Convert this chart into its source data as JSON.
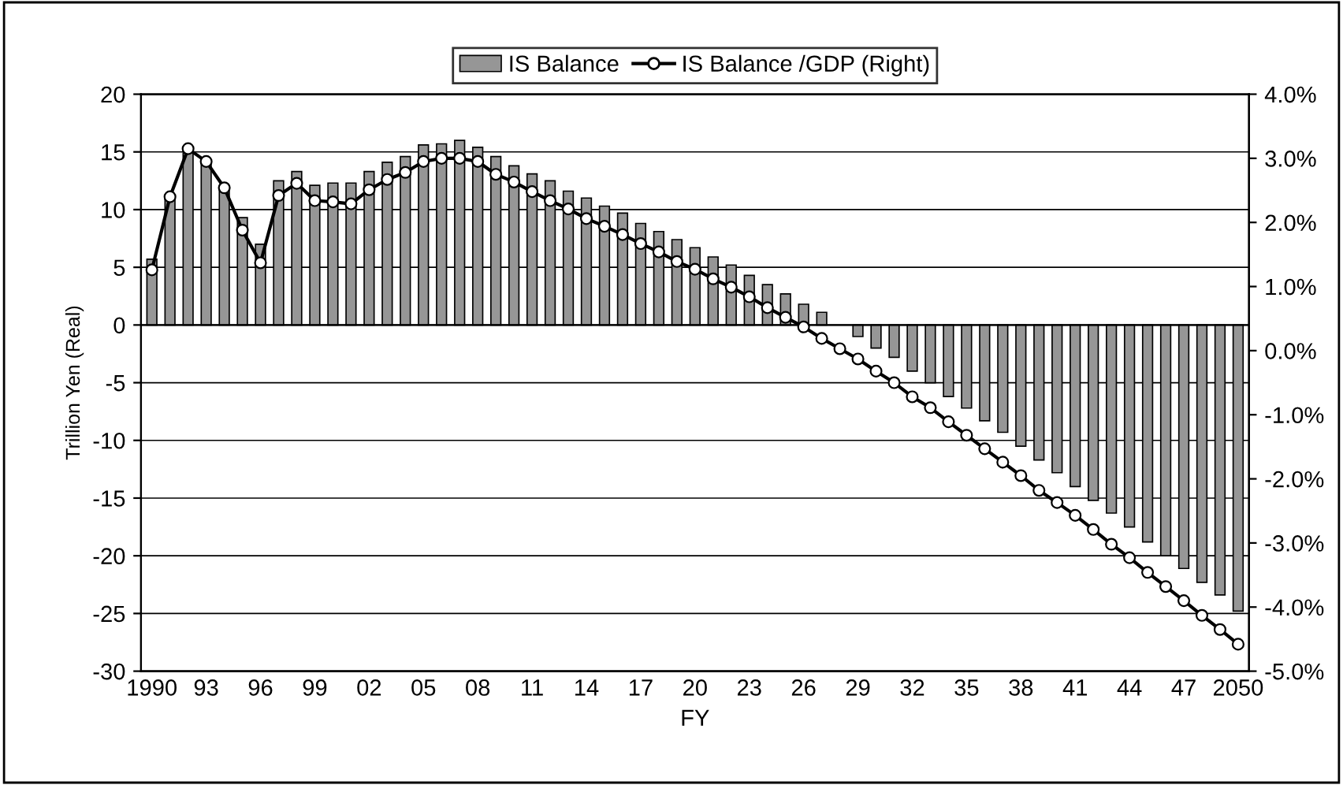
{
  "chart_data": {
    "type": "bar",
    "xlabel": "FY",
    "ylabel": "Trillion Yen (Real)",
    "categories": [
      "1990",
      null,
      null,
      "93",
      null,
      null,
      "96",
      null,
      null,
      "99",
      null,
      null,
      "02",
      null,
      null,
      "05",
      null,
      null,
      "08",
      null,
      null,
      "11",
      null,
      null,
      "14",
      null,
      null,
      "17",
      null,
      null,
      "20",
      null,
      null,
      "23",
      null,
      null,
      "26",
      null,
      null,
      "29",
      null,
      null,
      "32",
      null,
      null,
      "35",
      null,
      null,
      "38",
      null,
      null,
      "41",
      null,
      null,
      "44",
      null,
      null,
      "47",
      null,
      null,
      "2050"
    ],
    "series": [
      {
        "name": "IS Balance",
        "color": "#969696",
        "values": [
          5.7,
          11,
          14.9,
          14.3,
          11.9,
          9.3,
          7.0,
          12.5,
          13.3,
          12.1,
          12.3,
          12.3,
          13.3,
          14.1,
          14.6,
          15.6,
          15.7,
          16.0,
          15.4,
          14.6,
          13.8,
          13.1,
          12.5,
          11.6,
          11.0,
          10.3,
          9.7,
          8.8,
          8.1,
          7.4,
          6.7,
          5.9,
          5.2,
          4.3,
          3.5,
          2.7,
          1.8,
          1.1,
          null,
          -1.0,
          -2.0,
          -2.8,
          -4.0,
          -5.0,
          -6.2,
          -7.2,
          -8.3,
          -9.3,
          -10.5,
          -11.7,
          -12.8,
          -14.0,
          -15.2,
          -16.3,
          -17.5,
          -18.8,
          -20.0,
          -21.1,
          -22.3,
          -23.4,
          -24.8
        ]
      },
      {
        "name": "IS Balance /GDP (Right)",
        "type": "line",
        "axis": "y2",
        "color": "#000000",
        "marker": "circle",
        "values": [
          1.26,
          2.4,
          3.15,
          2.95,
          2.54,
          1.88,
          1.37,
          2.42,
          2.61,
          2.34,
          2.32,
          2.29,
          2.51,
          2.67,
          2.78,
          2.95,
          3.0,
          3.0,
          2.95,
          2.75,
          2.63,
          2.48,
          2.34,
          2.21,
          2.06,
          1.94,
          1.81,
          1.67,
          1.54,
          1.39,
          1.27,
          1.12,
          0.99,
          0.84,
          0.67,
          0.52,
          0.37,
          0.19,
          0.03,
          -0.13,
          -0.32,
          -0.5,
          -0.72,
          -0.89,
          -1.11,
          -1.32,
          -1.53,
          -1.74,
          -1.95,
          -2.18,
          -2.37,
          -2.57,
          -2.79,
          -3.02,
          -3.23,
          -3.46,
          -3.68,
          -3.9,
          -4.13,
          -4.35,
          -4.58
        ]
      }
    ],
    "ylim": [
      -30,
      20
    ],
    "yticks": [
      -30,
      -25,
      -20,
      -15,
      -10,
      -5,
      0,
      5,
      10,
      15,
      20
    ],
    "y2lim": [
      -5,
      4
    ],
    "y2ticks": [
      {
        "value": -5,
        "label": "-5.0%"
      },
      {
        "value": -4,
        "label": "-4.0%"
      },
      {
        "value": -3,
        "label": "-3.0%"
      },
      {
        "value": -2,
        "label": "-2.0%"
      },
      {
        "value": -1,
        "label": "-1.0%"
      },
      {
        "value": 0,
        "label": "0.0%"
      },
      {
        "value": 1,
        "label": "1.0%"
      },
      {
        "value": 2,
        "label": "2.0%"
      },
      {
        "value": 3,
        "label": "3.0%"
      },
      {
        "value": 4,
        "label": "4.0%"
      }
    ],
    "grid": "y",
    "legend": "top"
  }
}
